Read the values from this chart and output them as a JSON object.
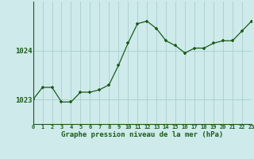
{
  "x": [
    0,
    1,
    2,
    3,
    4,
    5,
    6,
    7,
    8,
    9,
    10,
    11,
    12,
    13,
    14,
    15,
    16,
    17,
    18,
    19,
    20,
    21,
    22,
    23
  ],
  "y": [
    1023.0,
    1023.25,
    1023.25,
    1022.95,
    1022.95,
    1023.15,
    1023.15,
    1023.2,
    1023.3,
    1023.7,
    1024.15,
    1024.55,
    1024.6,
    1024.45,
    1024.2,
    1024.1,
    1023.95,
    1024.05,
    1024.05,
    1024.15,
    1024.2,
    1024.2,
    1024.4,
    1024.6
  ],
  "line_color": "#1a5c1a",
  "marker_color": "#1a5c1a",
  "bg_color": "#ceeaea",
  "grid_color": "#aacece",
  "xlabel": "Graphe pression niveau de la mer (hPa)",
  "xlabel_color": "#1a5c1a",
  "tick_color": "#1a5c1a",
  "yticks": [
    1023,
    1024
  ],
  "ylim": [
    1022.5,
    1025.0
  ],
  "xlim": [
    0,
    23
  ]
}
